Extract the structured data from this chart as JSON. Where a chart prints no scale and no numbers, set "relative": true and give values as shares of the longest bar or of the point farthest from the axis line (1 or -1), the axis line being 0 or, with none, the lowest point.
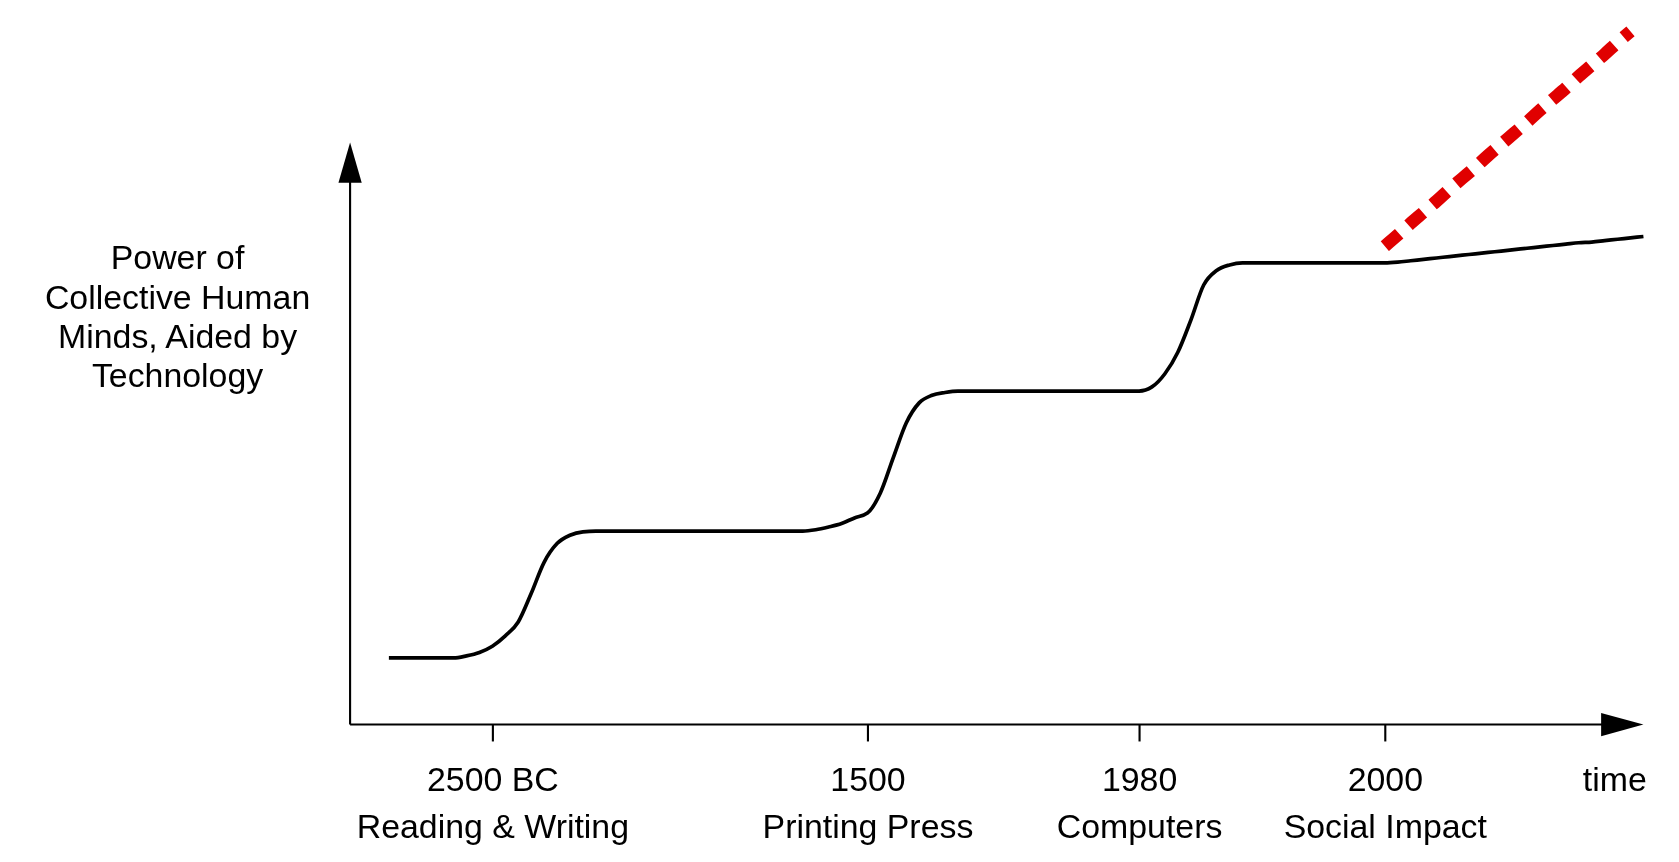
{
  "chart_data": {
    "type": "line",
    "relative": true,
    "xlabel": "time",
    "ylabel": "Power of Collective Human Minds, Aided by Technology",
    "categories": [
      null,
      null,
      null,
      null,
      null,
      null,
      null,
      null,
      null,
      null,
      null,
      "2500 BC\nReading & Writing",
      null,
      null,
      null,
      null,
      null,
      null,
      null,
      null,
      null,
      null,
      null,
      null,
      null,
      null,
      null,
      null,
      null,
      null,
      null,
      null,
      null,
      null,
      null,
      null,
      null,
      null,
      null,
      null,
      "1500\nPrinting Press",
      null,
      null,
      null,
      null,
      null,
      null,
      null,
      null,
      null,
      null,
      null,
      null,
      null,
      null,
      null,
      null,
      null,
      null,
      null,
      null,
      "1980\nComputers",
      null,
      null,
      null,
      null,
      null,
      null,
      null,
      null,
      null,
      null,
      null,
      null,
      null,
      null,
      null,
      null,
      null,
      null,
      "2000\nSocial Impact",
      null,
      null,
      null,
      null,
      null,
      null,
      null,
      null,
      null,
      null,
      null,
      null,
      null,
      null,
      null,
      null,
      null,
      null,
      null,
      null
    ],
    "series": [
      {
        "color": "#000000",
        "line_style": "solid",
        "values": [
          null,
          null,
          null,
          0.096,
          0.096,
          0.096,
          0.096,
          0.096,
          0.096,
          0.099,
          0.104,
          0.113,
          0.128,
          0.148,
          0.189,
          0.234,
          0.261,
          0.273,
          0.278,
          0.279,
          0.279,
          0.279,
          0.279,
          0.279,
          0.279,
          0.279,
          0.279,
          0.279,
          0.279,
          0.279,
          0.279,
          0.279,
          0.279,
          0.279,
          0.279,
          0.279,
          0.281,
          0.285,
          0.29,
          0.298,
          0.305,
          0.334,
          0.385,
          0.435,
          0.464,
          0.475,
          0.479,
          0.481,
          0.481,
          0.481,
          0.481,
          0.481,
          0.481,
          0.481,
          0.481,
          0.481,
          0.481,
          0.481,
          0.481,
          0.481,
          0.481,
          0.481,
          0.487,
          0.506,
          0.537,
          0.583,
          0.634,
          0.655,
          0.663,
          0.666,
          0.666,
          0.666,
          0.666,
          0.666,
          0.666,
          0.666,
          0.666,
          0.666,
          0.666,
          0.666,
          0.666,
          0.667,
          0.669,
          0.671,
          0.673,
          0.675,
          0.677,
          0.679,
          0.681,
          0.683,
          0.685,
          0.687,
          0.689,
          0.691,
          0.693,
          0.695,
          0.696,
          0.698,
          0.7,
          0.702,
          0.704
        ]
      },
      {
        "color": "#e00000",
        "line_style": "dashed",
        "values": [
          null,
          null,
          null,
          null,
          null,
          null,
          null,
          null,
          null,
          null,
          null,
          null,
          null,
          null,
          null,
          null,
          null,
          null,
          null,
          null,
          null,
          null,
          null,
          null,
          null,
          null,
          null,
          null,
          null,
          null,
          null,
          null,
          null,
          null,
          null,
          null,
          null,
          null,
          null,
          null,
          null,
          null,
          null,
          null,
          null,
          null,
          null,
          null,
          null,
          null,
          null,
          null,
          null,
          null,
          null,
          null,
          null,
          null,
          null,
          null,
          null,
          null,
          null,
          null,
          null,
          null,
          null,
          null,
          null,
          null,
          null,
          null,
          null,
          null,
          null,
          null,
          null,
          null,
          null,
          null,
          0.69,
          0.706,
          0.723,
          0.739,
          0.755,
          0.772,
          0.788,
          0.804,
          0.821,
          0.837,
          0.853,
          0.869,
          0.886,
          0.902,
          0.918,
          0.935,
          0.951,
          0.967,
          0.984,
          1.0,
          null
        ]
      }
    ]
  }
}
